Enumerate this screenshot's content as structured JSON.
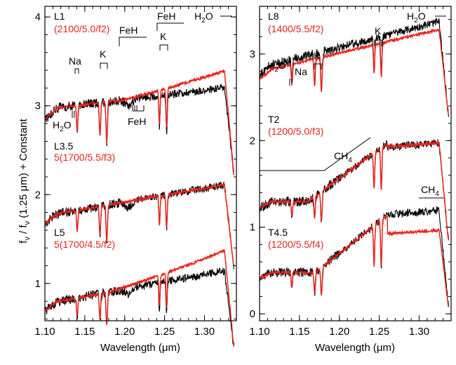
{
  "chart_data": [
    {
      "type": "line",
      "panel": "left",
      "xlabel": "Wavelength (μm)",
      "ylabel": "f_ν / f_ν (1.25 μm) + Constant",
      "xlim": [
        1.1,
        1.34
      ],
      "ylim": [
        0.58,
        4.12
      ],
      "xticks": [
        "1.10",
        "1.15",
        "1.20",
        "1.25",
        "1.30"
      ],
      "yticks": [
        "1",
        "2",
        "3",
        "4"
      ],
      "series": [
        {
          "name": "L1",
          "model": "(2100/5.0/f2)",
          "offset": 3.0
        },
        {
          "name": "L3.5",
          "model": "5(1700/5.5/f3)",
          "offset": 2.0
        },
        {
          "name": "L5",
          "model": "5(1700/4.5/f2)",
          "offset": 1.0
        }
      ],
      "annotations": [
        "Na",
        "K",
        "FeH",
        "FeH",
        "K",
        "H2O",
        "H2O",
        "FeH"
      ]
    },
    {
      "type": "line",
      "panel": "right",
      "xlabel": "Wavelength (μm)",
      "xlim": [
        1.1,
        1.34
      ],
      "ylim": [
        -0.08,
        3.55
      ],
      "xticks": [
        "1.10",
        "1.15",
        "1.20",
        "1.25",
        "1.30"
      ],
      "yticks": [
        "0",
        "1",
        "2",
        "3"
      ],
      "series": [
        {
          "name": "L8",
          "model": "(1400/5.5/f2)",
          "offset": 2.6
        },
        {
          "name": "T2",
          "model": "(1200/5.0/f3)",
          "offset": 1.35
        },
        {
          "name": "T4.5",
          "model": "(1200/5.5/f4)",
          "offset": 0.3
        }
      ],
      "annotations": [
        "H2O",
        "K",
        "H2O",
        "Na",
        "K",
        "CH4",
        "CH4"
      ]
    }
  ],
  "labels": {
    "xlabel": "Wavelength (μm)",
    "ylabel_main": "f",
    "ylabel_sub": "ν",
    "ylabel_rest1": " / f",
    "ylabel_rest2": " (1.25 μm) + Constant",
    "left": {
      "L1": "L1",
      "L1_model": "(2100/5.0/f2)",
      "L35": "L3.5",
      "L35_model": "5(1700/5.5/f3)",
      "L5": "L5",
      "L5_model": "5(1700/4.5/f2)",
      "ann_na": "Na",
      "ann_k1": "K",
      "ann_feh1": "FeH",
      "ann_feh2": "FeH",
      "ann_k2": "K",
      "ann_h2o_top": "H",
      "ann_h2o_bottom": "H",
      "ann_feh_bottom": "FeH"
    },
    "right": {
      "L8": "L8",
      "L8_model": "(1400/5.5/f2)",
      "T2": "T2",
      "T2_model": "(1200/5.0/f3)",
      "T45": "T4.5",
      "T45_model": "(1200/5.5/f4)",
      "ann_h2o_top": "H",
      "ann_k_top": "K",
      "ann_h2o": "H",
      "ann_na": "Na",
      "ann_k": "K",
      "ann_ch4_1": "CH",
      "ann_ch4_2": "CH"
    },
    "sub_2": "2",
    "sub_4": "4",
    "sup_o": "O"
  },
  "colors": {
    "observed": "#000000",
    "model": "#e8231b"
  }
}
